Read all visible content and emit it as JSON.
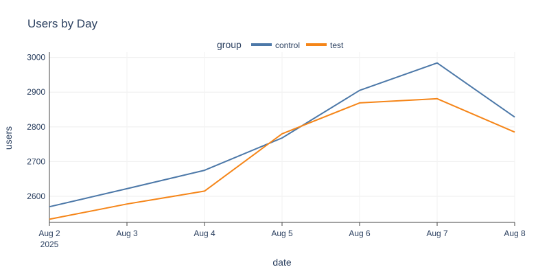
{
  "chart_data": {
    "type": "line",
    "title": "Users by Day",
    "xlabel": "date",
    "ylabel": "users",
    "x": [
      "2025-08-02",
      "2025-08-03",
      "2025-08-04",
      "2025-08-05",
      "2025-08-06",
      "2025-08-07",
      "2025-08-08"
    ],
    "x_tick_labels": [
      "Aug 2",
      "Aug 3",
      "Aug 4",
      "Aug 5",
      "Aug 6",
      "Aug 7",
      "Aug 8"
    ],
    "x_year_label": "2025",
    "y_ticks": [
      2600,
      2700,
      2800,
      2900,
      3000
    ],
    "ylim": [
      2525,
      3015
    ],
    "grid": true,
    "legend": {
      "title": "group",
      "placement": "top-center",
      "orientation": "horizontal"
    },
    "series": [
      {
        "name": "control",
        "color": "#4c78a8",
        "values": [
          2570,
          2622,
          2675,
          2768,
          2905,
          2984,
          2828
        ]
      },
      {
        "name": "test",
        "color": "#f58518",
        "values": [
          2534,
          2578,
          2615,
          2780,
          2869,
          2881,
          2785
        ]
      }
    ]
  }
}
